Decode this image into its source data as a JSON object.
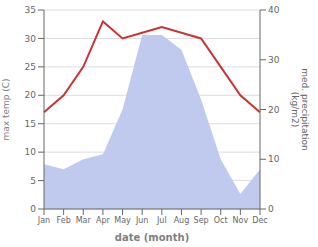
{
  "chart_data": {
    "type": "line",
    "categories": [
      "Jan",
      "Feb",
      "Mar",
      "Apr",
      "May",
      "Jun",
      "Jul",
      "Aug",
      "Sep",
      "Oct",
      "Nov",
      "Dec"
    ],
    "xlabel": "date (month)",
    "ylabel": "max temp (C)",
    "y2label": "med. precipitation\n(kg/m2)",
    "series": [
      {
        "type": "area",
        "axis": "y2",
        "color": "#c0caee",
        "values": [
          9,
          8,
          10,
          11,
          20,
          35,
          35,
          32,
          22,
          10,
          3,
          8
        ]
      },
      {
        "type": "line",
        "color": "#cc3333",
        "values": [
          17,
          20,
          25,
          33,
          30,
          31,
          32,
          31,
          30,
          25,
          20,
          17
        ]
      }
    ],
    "ylim": [
      0,
      35
    ],
    "yticks": [
      0,
      5,
      10,
      15,
      20,
      25,
      30,
      35
    ],
    "y2lim": [
      0,
      40
    ],
    "y2ticks": [
      0,
      10,
      20,
      30,
      40
    ],
    "grid": true
  }
}
